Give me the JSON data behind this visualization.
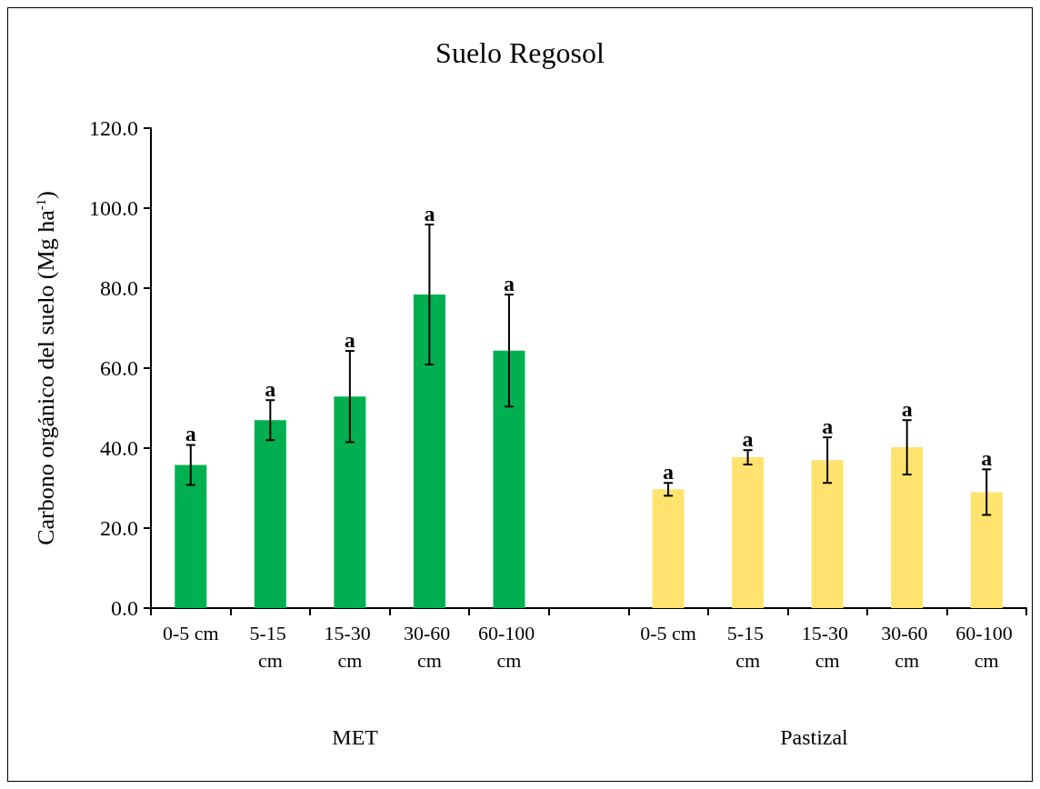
{
  "chart_data": {
    "type": "bar",
    "title": "Suelo Regosol",
    "ylabel": "Carbono orgánico del suelo (Mg ha$^{-1}$)",
    "categories": [
      "0-5 cm",
      "5-15 cm",
      "15-30 cm",
      "30-60 cm",
      "60-100 cm",
      null,
      "0-5 cm",
      "5-15 cm",
      "15-30 cm",
      "30-60 cm",
      "60-100 cm"
    ],
    "values": [
      35.8,
      47.0,
      52.9,
      78.4,
      64.4,
      null,
      29.7,
      37.7,
      37.0,
      40.2,
      29.0
    ],
    "errors": [
      5.0,
      5.0,
      11.4,
      17.5,
      14.0,
      null,
      1.6,
      1.8,
      5.7,
      6.8,
      5.7
    ],
    "value_labels": [
      "a",
      "a",
      "a",
      "a",
      "a",
      null,
      "a",
      "a",
      "a",
      "a",
      "a"
    ],
    "colors": [
      "#00b050",
      "#00b050",
      "#00b050",
      "#00b050",
      "#00b050",
      null,
      "#ffe36e",
      "#ffe36e",
      "#ffe36e",
      "#ffe36e",
      "#ffe36e"
    ],
    "annotations": [
      "MET",
      "Pastizal"
    ],
    "ylim": [
      0,
      120
    ],
    "yticks": [
      {
        "value": 0,
        "label": "0.0"
      },
      {
        "value": 20,
        "label": "20.0"
      },
      {
        "value": 40,
        "label": "40.0"
      },
      {
        "value": 60,
        "label": "60.0"
      },
      {
        "value": 80,
        "label": "80.0"
      },
      {
        "value": 100,
        "label": "100.0"
      },
      {
        "value": 120,
        "label": "120.0"
      }
    ],
    "grid": false
  }
}
